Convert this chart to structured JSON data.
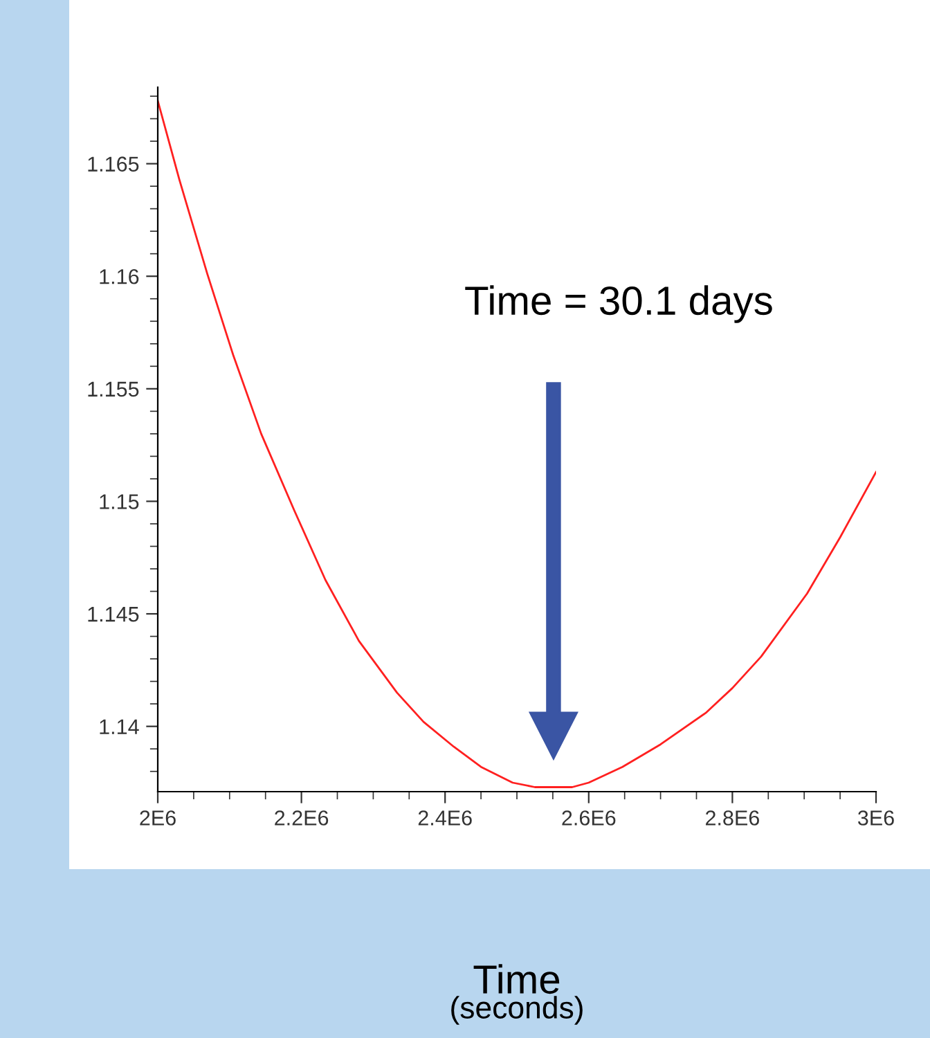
{
  "chart_data": {
    "type": "line",
    "x": [
      2000000,
      2030000,
      2069000,
      2105000,
      2144000,
      2190000,
      2233500,
      2280000,
      2333000,
      2370000,
      2412000,
      2450000,
      2494000,
      2525000,
      2550000,
      2577000,
      2600000,
      2647000,
      2700000,
      2763000,
      2800000,
      2840000,
      2904000,
      2950000,
      3000000
    ],
    "series": [
      {
        "color": "#ff2020",
        "values": [
          1.1678,
          1.1643,
          1.1601,
          1.1565,
          1.153,
          1.1496,
          1.1465,
          1.1438,
          1.1415,
          1.1402,
          1.1391,
          1.1382,
          1.1375,
          1.1373,
          1.1373,
          1.1373,
          1.1375,
          1.1382,
          1.1392,
          1.1406,
          1.1417,
          1.1431,
          1.1459,
          1.1484,
          1.1513
        ]
      }
    ],
    "xlim": [
      2000000,
      3000000
    ],
    "ylim": [
      1.1371,
      1.1684
    ],
    "xticks": [
      {
        "value": 2000000,
        "label": "2E6"
      },
      {
        "value": 2200000,
        "label": "2.2E6"
      },
      {
        "value": 2400000,
        "label": "2.4E6"
      },
      {
        "value": 2600000,
        "label": "2.6E6"
      },
      {
        "value": 2800000,
        "label": "2.8E6"
      },
      {
        "value": 3000000,
        "label": "3E6"
      }
    ],
    "yticks": [
      1.14,
      1.145,
      1.15,
      1.155,
      1.16,
      1.165
    ],
    "xlabel": "Time\n(seconds)",
    "annotations": [
      "Time = 30.1 days"
    ],
    "grid": false,
    "legend": false
  }
}
